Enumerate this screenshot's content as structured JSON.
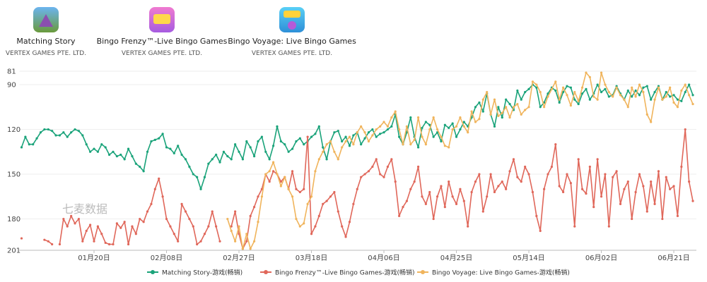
{
  "apps": [
    {
      "name": "Matching Story",
      "publisher": "VERTEX GAMES PTE. LTD."
    },
    {
      "name": "Bingo Frenzy™-Live Bingo Games",
      "publisher": "VERTEX GAMES PTE. LTD."
    },
    {
      "name": "Bingo Voyage: Live Bingo Games",
      "publisher": "VERTEX GAMES PTE. LTD."
    }
  ],
  "watermark": "七麦数据",
  "chart_data": {
    "type": "line",
    "ylim": [
      81,
      201
    ],
    "inverted": true,
    "yticks": [
      81,
      90,
      120,
      150,
      180,
      201
    ],
    "grid": true,
    "legend": "bottom",
    "categories": [
      null,
      null,
      null,
      null,
      null,
      null,
      null,
      null,
      null,
      null,
      null,
      null,
      null,
      null,
      null,
      null,
      null,
      null,
      null,
      "01月20日",
      null,
      null,
      null,
      null,
      null,
      null,
      null,
      null,
      null,
      null,
      null,
      null,
      null,
      null,
      null,
      null,
      null,
      null,
      "02月08日",
      null,
      null,
      null,
      null,
      null,
      null,
      null,
      null,
      null,
      null,
      null,
      null,
      null,
      null,
      null,
      null,
      null,
      null,
      "02月27日",
      null,
      null,
      null,
      null,
      null,
      null,
      null,
      null,
      null,
      null,
      null,
      null,
      null,
      null,
      null,
      null,
      null,
      null,
      "03月18日",
      null,
      null,
      null,
      null,
      null,
      null,
      null,
      null,
      null,
      null,
      null,
      null,
      null,
      null,
      null,
      null,
      null,
      null,
      "04月06日",
      null,
      null,
      null,
      null,
      null,
      null,
      null,
      null,
      null,
      null,
      null,
      null,
      null,
      null,
      null,
      null,
      null,
      null,
      "04月25日",
      null,
      null,
      null,
      null,
      null,
      null,
      null,
      null,
      null,
      null,
      null,
      null,
      null,
      null,
      null,
      null,
      null,
      null,
      "05月14日",
      null,
      null,
      null,
      null,
      null,
      null,
      null,
      null,
      null,
      null,
      null,
      null,
      null,
      null,
      null,
      null,
      null,
      null,
      "06月02日",
      null,
      null,
      null,
      null,
      null,
      null,
      null,
      null,
      null,
      null,
      null,
      null,
      null,
      null,
      null,
      null,
      null,
      null,
      "06月21日",
      null,
      null,
      null,
      null,
      null
    ],
    "series": [
      {
        "name": "Matching Story-游戏(畅销)",
        "color": "#1aa37a",
        "values": [
          132,
          125,
          130,
          130,
          126,
          122,
          120,
          120,
          121,
          124,
          124,
          122,
          125,
          122,
          120,
          121,
          124,
          130,
          135,
          133,
          135,
          130,
          132,
          137,
          135,
          138,
          137,
          140,
          133,
          138,
          143,
          145,
          148,
          135,
          128,
          127,
          126,
          123,
          132,
          133,
          136,
          131,
          137,
          140,
          145,
          150,
          152,
          160,
          152,
          143,
          140,
          137,
          142,
          135,
          138,
          140,
          130,
          135,
          140,
          128,
          132,
          138,
          128,
          125,
          135,
          140,
          131,
          118,
          128,
          130,
          135,
          133,
          128,
          126,
          130,
          128,
          125,
          123,
          118,
          132,
          140,
          128,
          122,
          121,
          128,
          125,
          131,
          124,
          122,
          130,
          126,
          122,
          120,
          125,
          123,
          122,
          120,
          118,
          110,
          125,
          130,
          122,
          112,
          125,
          132,
          119,
          115,
          117,
          125,
          122,
          128,
          117,
          119,
          116,
          125,
          120,
          115,
          118,
          112,
          105,
          102,
          108,
          96,
          110,
          118,
          105,
          112,
          100,
          103,
          107,
          94,
          100,
          95,
          93,
          90,
          92,
          105,
          102,
          96,
          92,
          94,
          102,
          95,
          91,
          92,
          100,
          103,
          96,
          93,
          100,
          96,
          90,
          95,
          93,
          98,
          97,
          91,
          96,
          100,
          94,
          98,
          94,
          97,
          92,
          91,
          100,
          95,
          91,
          100,
          95,
          98,
          97,
          100,
          101,
          95,
          90,
          97
        ]
      },
      {
        "name": "Bingo Frenzy™-Live Bingo Games-游戏(畅销)",
        "color": "#e0675a",
        "values": [
          193,
          null,
          null,
          null,
          null,
          null,
          194,
          195,
          197,
          null,
          197,
          180,
          185,
          178,
          183,
          180,
          195,
          188,
          184,
          195,
          185,
          190,
          196,
          197,
          197,
          183,
          186,
          182,
          197,
          185,
          190,
          180,
          182,
          175,
          170,
          160,
          153,
          165,
          180,
          185,
          190,
          195,
          170,
          175,
          180,
          185,
          197,
          195,
          190,
          185,
          175,
          185,
          195,
          null,
          null,
          185,
          175,
          190,
          200,
          195,
          178,
          172,
          165,
          160,
          150,
          155,
          148,
          150,
          155,
          152,
          160,
          148,
          160,
          162,
          160,
          125,
          190,
          185,
          178,
          170,
          168,
          165,
          162,
          175,
          185,
          192,
          182,
          170,
          160,
          152,
          150,
          148,
          145,
          140,
          150,
          152,
          145,
          140,
          155,
          178,
          172,
          168,
          160,
          155,
          145,
          165,
          170,
          162,
          180,
          165,
          158,
          172,
          155,
          165,
          170,
          160,
          168,
          185,
          162,
          155,
          150,
          175,
          165,
          150,
          162,
          158,
          155,
          160,
          148,
          140,
          152,
          155,
          145,
          150,
          162,
          178,
          188,
          160,
          150,
          145,
          130,
          158,
          162,
          150,
          156,
          185,
          140,
          160,
          163,
          145,
          172,
          140,
          165,
          150,
          185,
          152,
          148,
          170,
          160,
          155,
          180,
          162,
          150,
          158,
          175,
          155,
          170,
          148,
          180,
          152,
          160,
          158,
          178,
          145,
          120,
          155,
          168
        ]
      },
      {
        "name": "Bingo Voyage: Live Bingo Games-游戏(畅销)",
        "color": "#f0b45c",
        "values": [
          null,
          null,
          null,
          null,
          null,
          null,
          null,
          null,
          null,
          null,
          null,
          null,
          null,
          null,
          null,
          null,
          null,
          null,
          null,
          null,
          null,
          null,
          null,
          null,
          null,
          null,
          null,
          null,
          null,
          null,
          null,
          null,
          null,
          null,
          null,
          null,
          null,
          null,
          null,
          null,
          null,
          null,
          null,
          null,
          null,
          null,
          null,
          null,
          null,
          null,
          null,
          null,
          null,
          null,
          180,
          188,
          195,
          185,
          200,
          190,
          200,
          195,
          182,
          165,
          150,
          148,
          142,
          150,
          158,
          152,
          160,
          165,
          180,
          185,
          183,
          170,
          165,
          148,
          140,
          135,
          130,
          128,
          135,
          140,
          132,
          128,
          125,
          130,
          122,
          118,
          122,
          128,
          124,
          120,
          118,
          115,
          118,
          112,
          108,
          120,
          130,
          118,
          130,
          127,
          112,
          125,
          130,
          120,
          112,
          120,
          125,
          131,
          132,
          120,
          118,
          112,
          118,
          122,
          108,
          115,
          113,
          100,
          95,
          110,
          100,
          111,
          109,
          105,
          112,
          105,
          103,
          110,
          107,
          105,
          88,
          90,
          95,
          105,
          98,
          93,
          88,
          100,
          92,
          97,
          104,
          95,
          101,
          92,
          82,
          85,
          98,
          100,
          82,
          90,
          95,
          98,
          92,
          97,
          100,
          105,
          92,
          98,
          90,
          95,
          110,
          115,
          100,
          92,
          100,
          98,
          92,
          102,
          105,
          94,
          90,
          97,
          103
        ]
      }
    ]
  }
}
